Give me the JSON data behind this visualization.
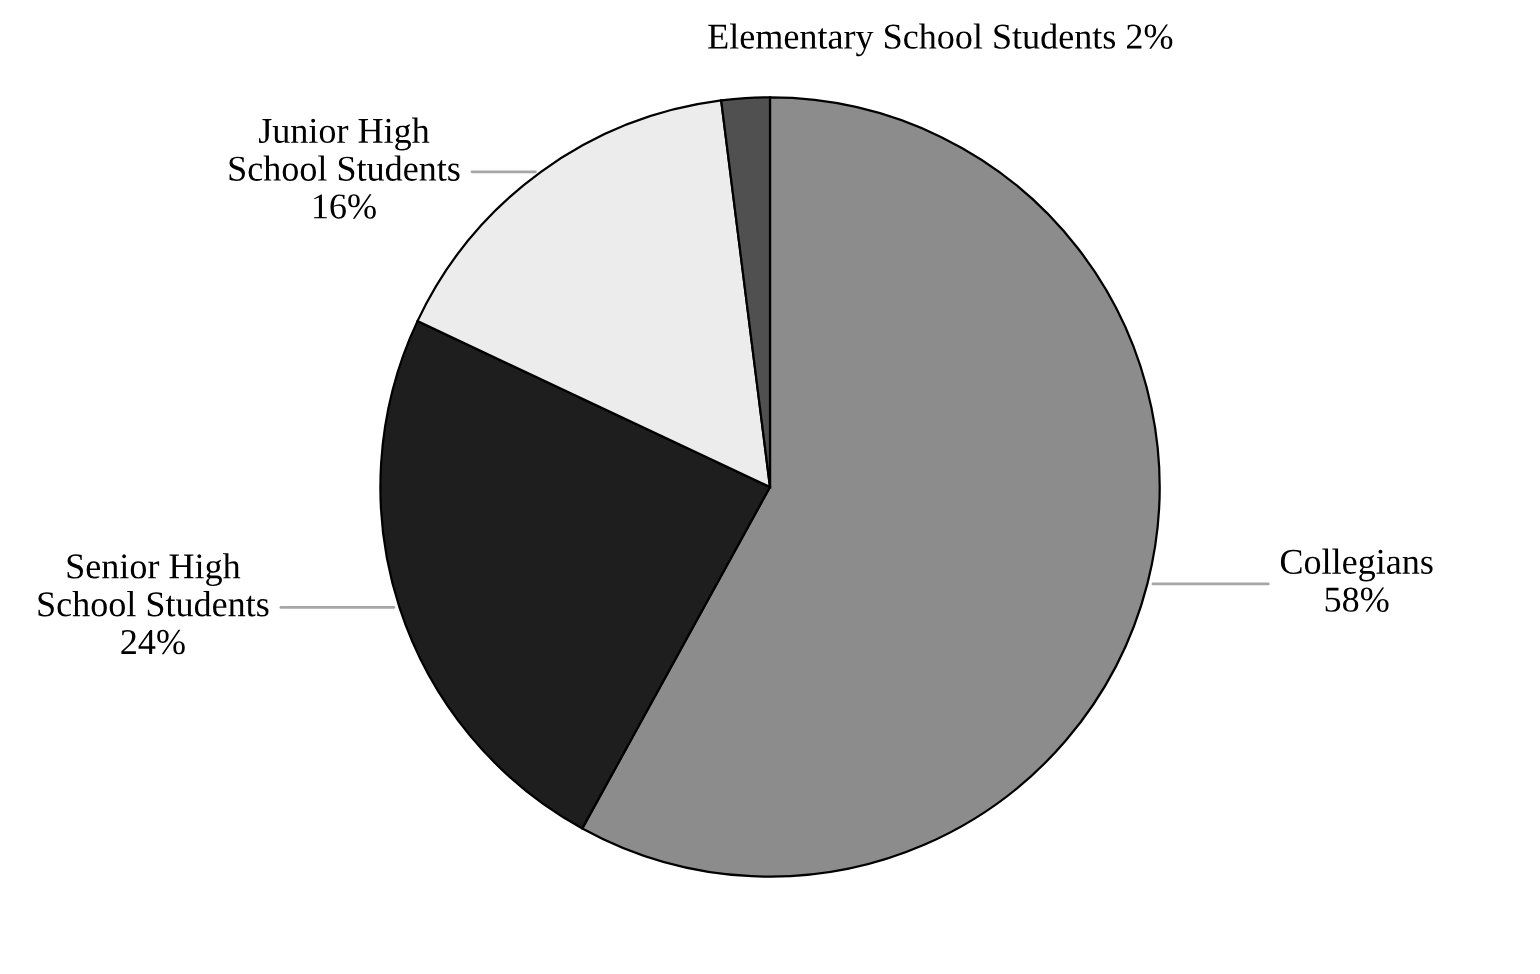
{
  "chart_data": {
    "type": "pie",
    "categories": [
      "Collegians",
      "Senior High\nSchool Students",
      "Junior High\nSchool Students",
      "Elementary School Students"
    ],
    "values": [
      58,
      24,
      16,
      2
    ],
    "value_labels": [
      "58%",
      "24%",
      "16%",
      "2%"
    ],
    "colors": [
      "#8c8c8c",
      "#1e1e1e",
      "#ececec",
      "#505050"
    ],
    "legend": false
  }
}
